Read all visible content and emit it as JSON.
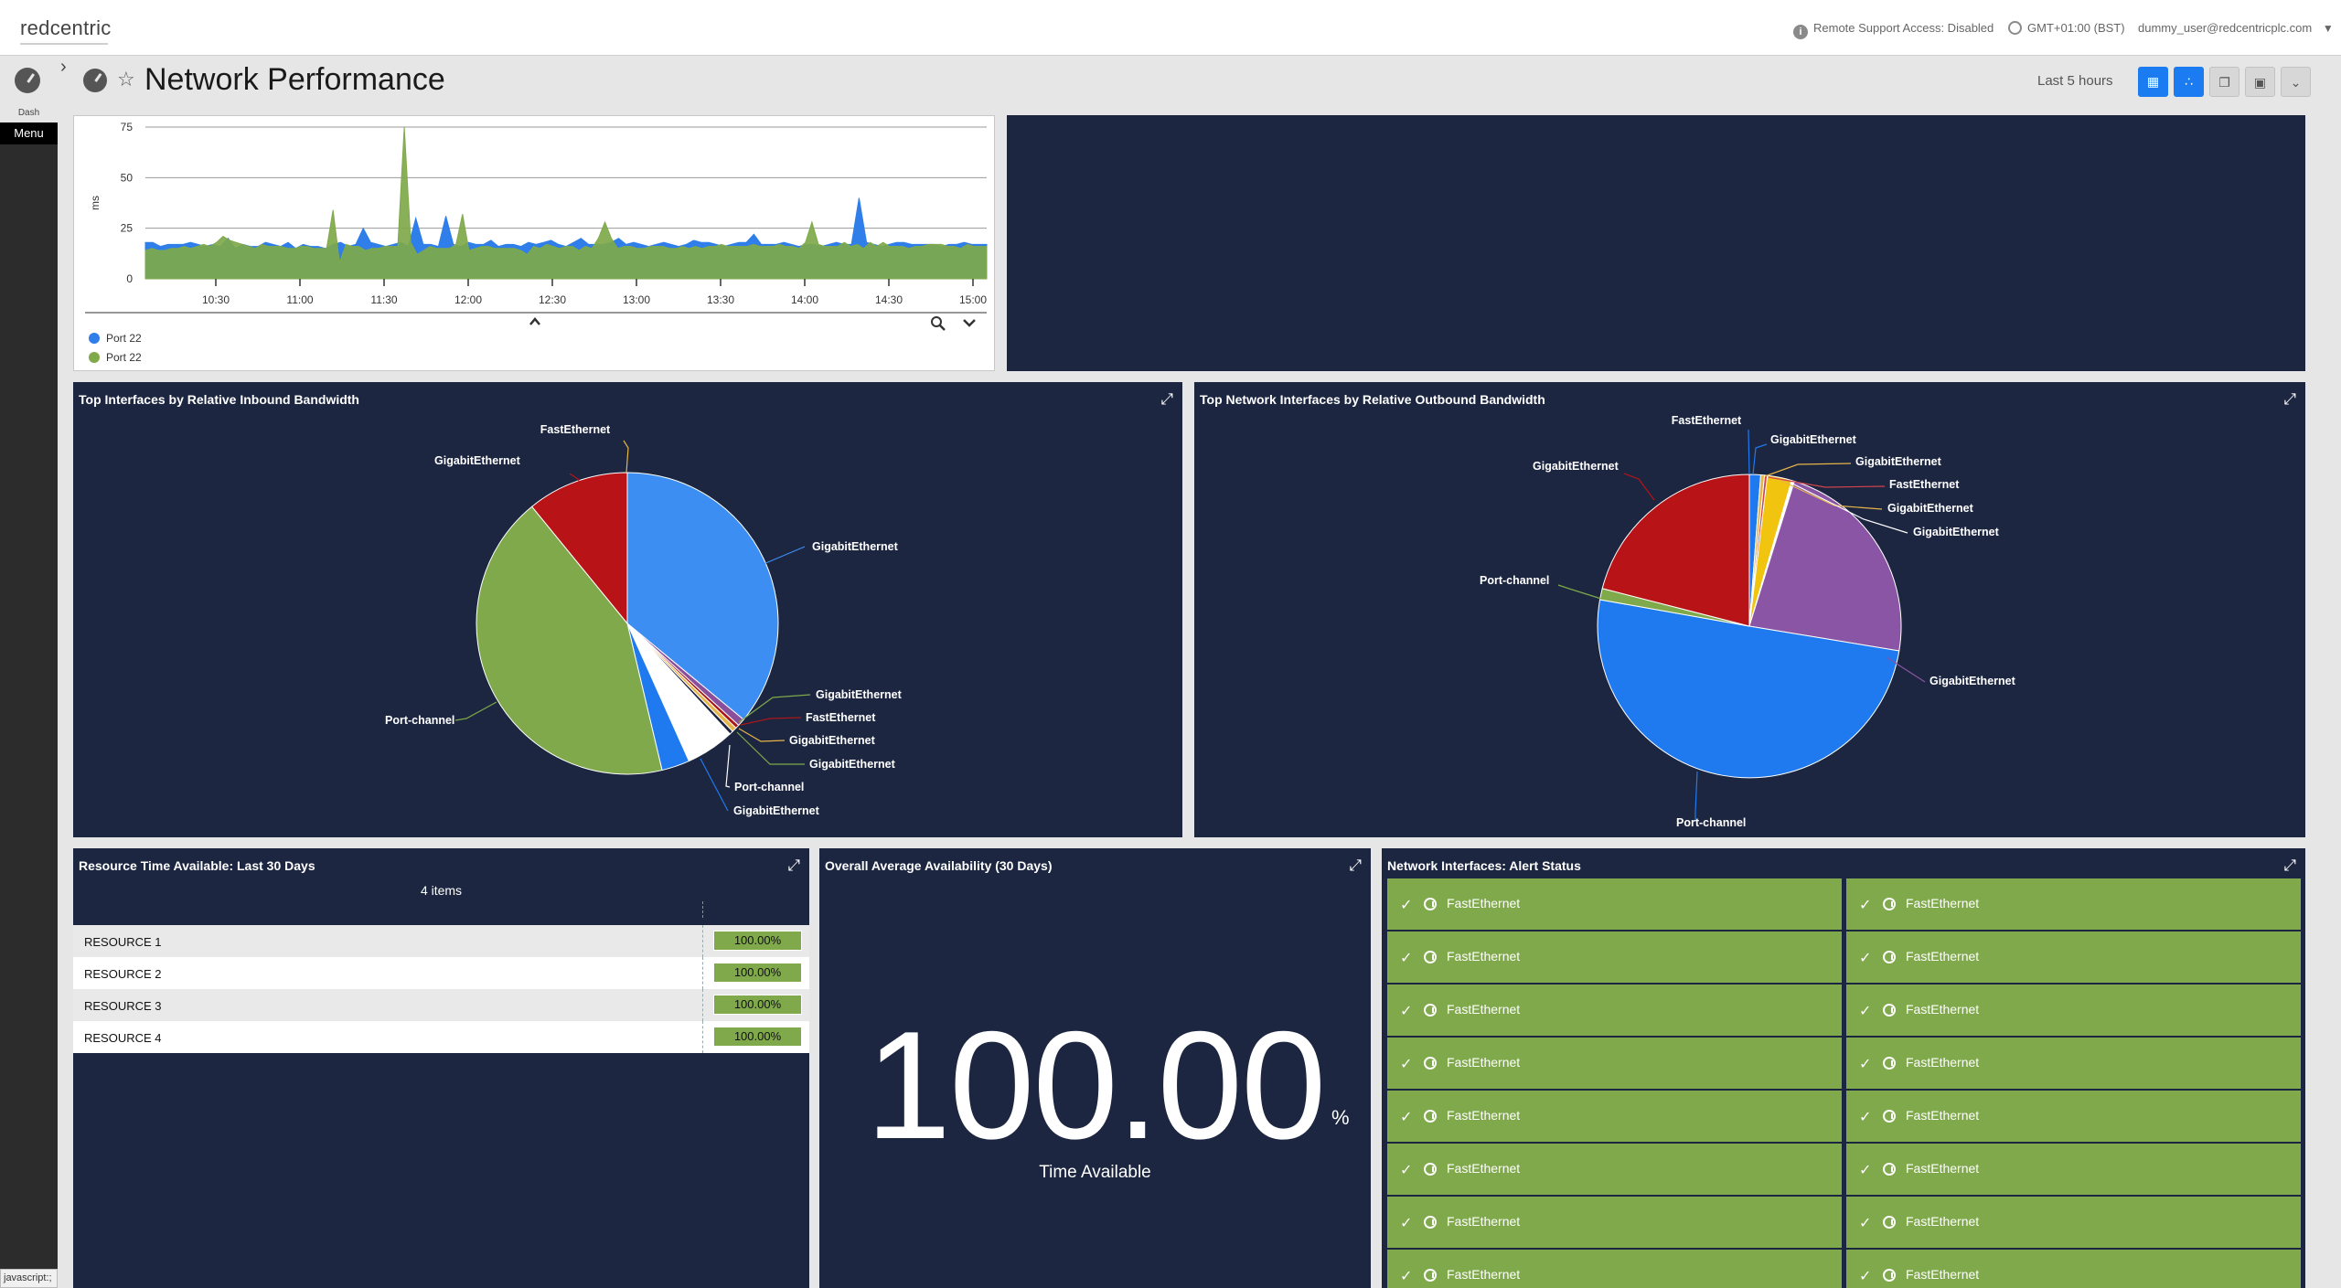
{
  "top_bar": {
    "logo": "redcentric",
    "remote_support": "Remote Support Access: Disabled",
    "timezone": "GMT+01:00 (BST)",
    "user": "dummy_user@redcentricplc.com"
  },
  "rail": {
    "dash_label": "Dash",
    "menu_label": "Menu",
    "status_text": "javascript:;"
  },
  "header": {
    "title": "Network Performance",
    "time_range": "Last 5 hours"
  },
  "latency_widget": {
    "chart_data": {
      "type": "area",
      "ylabel": "ms",
      "y_ticks": [
        "75",
        "50",
        "25",
        "0"
      ],
      "ylim": [
        0,
        75
      ],
      "x_ticks": [
        "10:30",
        "11:00",
        "11:30",
        "12:00",
        "12:30",
        "13:00",
        "13:30",
        "14:00",
        "14:30",
        "15:00"
      ],
      "series": [
        {
          "name": "Port 22",
          "color": "#2f7ee9",
          "values": [
            18,
            18,
            16,
            17,
            17,
            17,
            18,
            17,
            16,
            17,
            16,
            20,
            15,
            17,
            16,
            16,
            18,
            17,
            16,
            18,
            15,
            17,
            16,
            16,
            15,
            17,
            18,
            16,
            17,
            25,
            18,
            17,
            16,
            17,
            18,
            16,
            30,
            17,
            17,
            16,
            31,
            17,
            16,
            18,
            17,
            17,
            19,
            16,
            17,
            17,
            16,
            18,
            17,
            18,
            19,
            17,
            16,
            18,
            20,
            17,
            17,
            17,
            18,
            20,
            17,
            18,
            17,
            16,
            17,
            18,
            17,
            16,
            17,
            19,
            18,
            18,
            17,
            16,
            17,
            18,
            18,
            22,
            17,
            17,
            17,
            18,
            17,
            16,
            17,
            17,
            16,
            17,
            18,
            17,
            17,
            40,
            18,
            17,
            16,
            17,
            18,
            18,
            17,
            17,
            17,
            17,
            16,
            17,
            17,
            18,
            17,
            17,
            17
          ]
        },
        {
          "name": "Port 22",
          "color": "#7fa94a",
          "values": [
            14,
            15,
            14,
            14,
            15,
            15,
            16,
            15,
            16,
            17,
            16,
            18,
            21,
            19,
            18,
            17,
            16,
            15,
            17,
            16,
            16,
            16,
            15,
            15,
            16,
            16,
            15,
            15,
            15,
            34,
            8,
            17,
            16,
            16,
            14,
            15,
            15,
            16,
            16,
            16,
            75,
            18,
            12,
            14,
            16,
            15,
            15,
            15,
            17,
            32,
            14,
            15,
            16,
            16,
            15,
            15,
            15,
            15,
            14,
            12,
            16,
            15,
            17,
            16,
            15,
            16,
            16,
            14,
            16,
            15,
            20,
            28,
            20,
            15,
            16,
            16,
            15,
            15,
            16,
            16,
            16,
            15,
            15,
            16,
            15,
            16,
            15,
            16,
            16,
            17,
            16,
            16,
            16,
            16,
            17,
            16,
            16,
            16,
            17,
            16,
            16,
            15,
            18,
            28,
            17,
            16,
            16,
            16,
            18,
            16,
            17,
            15,
            18,
            16,
            18,
            16,
            16,
            16,
            15,
            16,
            16,
            17,
            17,
            17,
            16,
            16,
            15,
            17,
            16,
            16,
            16
          ]
        }
      ]
    }
  },
  "inbound_widget": {
    "title": "Top Interfaces by Relative Inbound Bandwidth",
    "chart_data": {
      "type": "pie",
      "slices": [
        {
          "label": "GigabitEthernet",
          "value": 36.0,
          "color": "#3d8ef2"
        },
        {
          "label": "GigabitEthernet",
          "value": 0.8,
          "color": "#8a4f9b"
        },
        {
          "label": "FastEthernet",
          "value": 0.4,
          "color": "#a9171a"
        },
        {
          "label": "GigabitEthernet",
          "value": 0.5,
          "color": "#e6b54a"
        },
        {
          "label": "GigabitEthernet",
          "value": 0.4,
          "color": "#1c2640"
        },
        {
          "label": "Port-channel",
          "value": 5.2,
          "color": "#ffffff"
        },
        {
          "label": "GigabitEthernet",
          "value": 3.0,
          "color": "#1f7af0"
        },
        {
          "label": "Port-channel",
          "value": 42.8,
          "color": "#7fa94a"
        },
        {
          "label": "GigabitEthernet",
          "value": 10.9,
          "color": "#b81417"
        }
      ],
      "label_list": [
        "GigabitEthernet",
        "GigabitEthernet",
        "FastEthernet",
        "GigabitEthernet",
        "GigabitEthernet",
        "Port-channel",
        "GigabitEthernet",
        "Port-channel",
        "GigabitEthernet",
        "FastEthernet"
      ]
    }
  },
  "outbound_widget": {
    "title": "Top Network Interfaces by Relative Outbound Bandwidth",
    "chart_data": {
      "type": "pie",
      "slices": [
        {
          "label": "GigabitEthernet",
          "value": 1.2,
          "color": "#1f7af0"
        },
        {
          "label": "GigabitEthernet",
          "value": 0.4,
          "color": "#e6b54a"
        },
        {
          "label": "FastEthernet",
          "value": 0.3,
          "color": "#d1434d"
        },
        {
          "label": "GigabitEthernet",
          "value": 2.6,
          "color": "#f1c40f"
        },
        {
          "label": "GigabitEthernet",
          "value": 0.3,
          "color": "#ffffff"
        },
        {
          "label": "GigabitEthernet",
          "value": 22.8,
          "color": "#8a55a5"
        },
        {
          "label": "Port-channel",
          "value": 50.2,
          "color": "#1f7af0"
        },
        {
          "label": "Port-channel",
          "value": 1.2,
          "color": "#7fa94a"
        },
        {
          "label": "GigabitEthernet",
          "value": 21.0,
          "color": "#b81417"
        }
      ],
      "label_list": [
        "FastEthernet",
        "GigabitEthernet",
        "GigabitEthernet",
        "FastEthernet",
        "GigabitEthernet",
        "GigabitEthernet",
        "GigabitEthernet",
        "Port-channel",
        "Port-channel",
        "GigabitEthernet"
      ]
    }
  },
  "resource_widget": {
    "title": "Resource Time Available: Last 30 Days",
    "count": "4 items",
    "rows": [
      {
        "name": "RESOURCE 1",
        "value": "100.00%"
      },
      {
        "name": "RESOURCE 2",
        "value": "100.00%"
      },
      {
        "name": "RESOURCE 3",
        "value": "100.00%"
      },
      {
        "name": "RESOURCE 4",
        "value": "100.00%"
      }
    ]
  },
  "overall_widget": {
    "title": "Overall Average Availability (30 Days)",
    "value": "100.00",
    "unit": "%",
    "caption": "Time Available"
  },
  "alerts_widget": {
    "title": "Network Interfaces: Alert Status",
    "status_color": "#7fa94a",
    "cells": [
      "FastEthernet",
      "FastEthernet",
      "FastEthernet",
      "FastEthernet",
      "FastEthernet",
      "FastEthernet",
      "FastEthernet",
      "FastEthernet",
      "FastEthernet",
      "FastEthernet",
      "FastEthernet",
      "FastEthernet",
      "FastEthernet",
      "FastEthernet",
      "FastEthernet",
      "FastEthernet"
    ]
  }
}
